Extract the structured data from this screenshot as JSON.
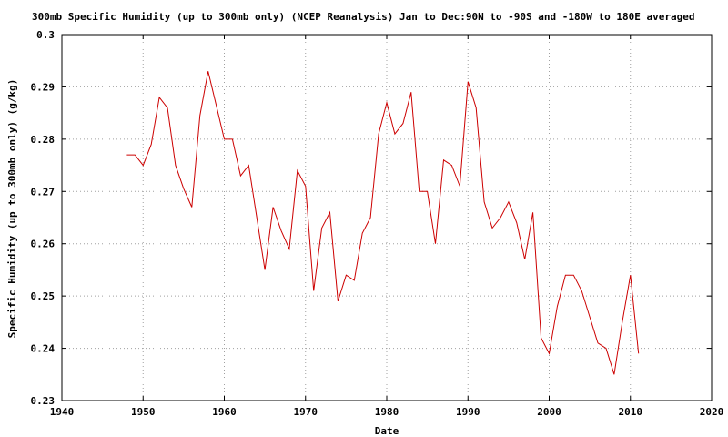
{
  "chart_data": {
    "type": "line",
    "title": "300mb Specific Humidity (up to 300mb only) (NCEP Reanalysis) Jan to Dec:90N to -90S and -180W to 180E averaged",
    "xlabel": "Date",
    "ylabel": "Specific Humidity (up to 300mb only) (g/kg)",
    "xlim": [
      1940,
      2020
    ],
    "ylim": [
      0.23,
      0.3
    ],
    "x_ticks": [
      1940,
      1950,
      1960,
      1970,
      1980,
      1990,
      2000,
      2010,
      2020
    ],
    "x_tick_labels": [
      "1940",
      "1950",
      "1960",
      "1970",
      "1980",
      "1990",
      "2000",
      "2010",
      "2020"
    ],
    "y_ticks": [
      0.23,
      0.24,
      0.25,
      0.26,
      0.27,
      0.28,
      0.29,
      0.3
    ],
    "y_tick_labels": [
      "0.23",
      "0.24",
      "0.25",
      "0.26",
      "0.27",
      "0.28",
      "0.29",
      "0.3"
    ],
    "grid": true,
    "line_color": "#cc0000",
    "series": [
      {
        "x": [
          1948,
          1949,
          1950,
          1951,
          1952,
          1953,
          1954,
          1955,
          1956,
          1957,
          1958,
          1959,
          1960,
          1961,
          1962,
          1963,
          1964,
          1965,
          1966,
          1967,
          1968,
          1969,
          1970,
          1971,
          1972,
          1973,
          1974,
          1975,
          1976,
          1977,
          1978,
          1979,
          1980,
          1981,
          1982,
          1983,
          1984,
          1985,
          1986,
          1987,
          1988,
          1989,
          1990,
          1991,
          1992,
          1993,
          1994,
          1995,
          1996,
          1997,
          1998,
          1999,
          2000,
          2001,
          2002,
          2003,
          2004,
          2005,
          2006,
          2007,
          2008,
          2009,
          2010,
          2011
        ],
        "values": [
          0.277,
          0.277,
          0.275,
          0.279,
          0.288,
          0.286,
          0.275,
          0.2705,
          0.267,
          0.2845,
          0.293,
          0.2865,
          0.28,
          0.28,
          0.273,
          0.275,
          0.265,
          0.255,
          0.267,
          0.2625,
          0.259,
          0.274,
          0.271,
          0.251,
          0.263,
          0.266,
          0.249,
          0.254,
          0.253,
          0.262,
          0.265,
          0.281,
          0.287,
          0.281,
          0.283,
          0.289,
          0.27,
          0.27,
          0.26,
          0.276,
          0.275,
          0.271,
          0.291,
          0.286,
          0.268,
          0.263,
          0.265,
          0.268,
          0.264,
          0.257,
          0.266,
          0.242,
          0.239,
          0.248,
          0.254,
          0.254,
          0.251,
          0.246,
          0.241,
          0.24,
          0.235,
          0.245,
          0.254,
          0.239
        ]
      }
    ]
  }
}
